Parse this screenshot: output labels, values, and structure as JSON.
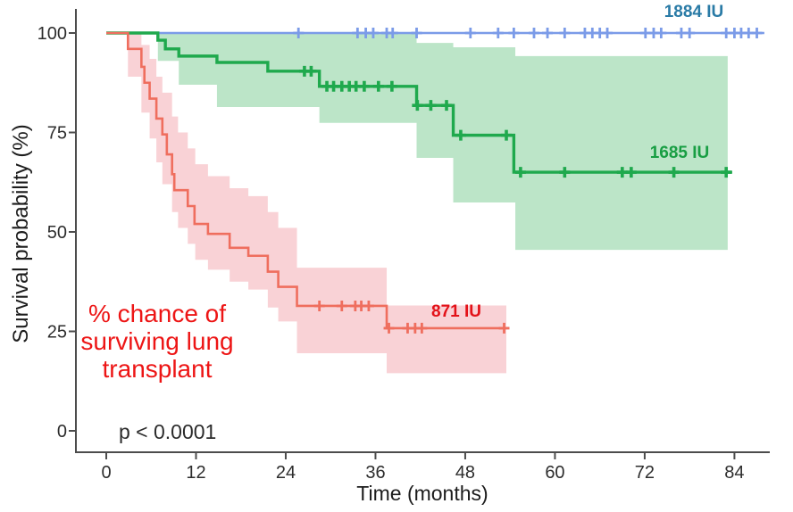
{
  "figure": {
    "y_axis_title": "Survival probability (%)",
    "x_axis_title": "Time (months)",
    "p_value": "p < 0.0001",
    "annotation": {
      "lines": [
        "% chance of",
        "surviving lung",
        "transplant"
      ],
      "color": "#ed1515"
    },
    "group_labels": {
      "blue": "1884 IU",
      "green": "1685 IU",
      "red": "871 IU"
    }
  },
  "chart_data": {
    "type": "line",
    "subtype": "kaplan-meier-step",
    "title": "",
    "xlabel": "Time (months)",
    "ylabel": "Survival probability (%)",
    "xlim": [
      0,
      88
    ],
    "ylim": [
      0,
      100
    ],
    "x_ticks": [
      0,
      12,
      24,
      36,
      48,
      60,
      72,
      84
    ],
    "y_ticks": [
      100,
      75,
      50,
      25,
      0
    ],
    "grid": false,
    "legend_position": "labels-on-plot",
    "p_value_text": "p < 0.0001",
    "axis_color": "#4c4c4c",
    "tick_label_color": "#2d2d2d",
    "series": [
      {
        "name": "1884 IU",
        "line_color": "#7b9be8",
        "label_color": "#2a7ba6",
        "line_width": 2.6,
        "steps": [
          [
            0,
            100
          ]
        ],
        "end_month": 88,
        "band": null,
        "censors": [
          [
            25.7,
            100
          ],
          [
            33.6,
            100
          ],
          [
            34.7,
            100
          ],
          [
            35.7,
            100
          ],
          [
            37.5,
            100
          ],
          [
            38.3,
            100
          ],
          [
            41.5,
            100
          ],
          [
            48.7,
            100
          ],
          [
            52.4,
            100
          ],
          [
            54.5,
            100
          ],
          [
            57.2,
            100
          ],
          [
            59.0,
            100
          ],
          [
            61.3,
            100
          ],
          [
            64.0,
            100
          ],
          [
            65.0,
            100
          ],
          [
            66.0,
            100
          ],
          [
            67.0,
            100
          ],
          [
            72.1,
            100
          ],
          [
            73.2,
            100
          ],
          [
            74.2,
            100
          ],
          [
            76.9,
            100
          ],
          [
            78.0,
            100
          ],
          [
            82.9,
            100
          ],
          [
            84.0,
            100
          ],
          [
            84.9,
            100
          ],
          [
            85.9,
            100
          ],
          [
            87.0,
            100
          ]
        ]
      },
      {
        "name": "1685 IU",
        "line_color": "#1fa94d",
        "label_color": "#189e43",
        "line_width": 3.4,
        "steps": [
          [
            0,
            100
          ],
          [
            6.9,
            98.2
          ],
          [
            7.9,
            96.0
          ],
          [
            9.7,
            94.2
          ],
          [
            14.8,
            92.6
          ],
          [
            21.6,
            90.4
          ],
          [
            28.5,
            86.6
          ],
          [
            41.5,
            81.8
          ],
          [
            46.4,
            74.3
          ],
          [
            54.5,
            65.0
          ]
        ],
        "end_month": 83.7,
        "band": {
          "color": "#bce5c8",
          "breaks": [
            [
              6.9,
              100,
              93
            ],
            [
              9.7,
              100,
              87
            ],
            [
              14.8,
              100,
              81.4
            ],
            [
              28.5,
              100,
              77.4
            ],
            [
              41.5,
              97.5,
              68.6
            ],
            [
              46.4,
              96.4,
              57.4
            ],
            [
              54.7,
              94.2,
              45.5
            ]
          ],
          "end_month": 83.1
        },
        "censors": [
          [
            26.5,
            90.4
          ],
          [
            27.4,
            90.4
          ],
          [
            29.5,
            86.6
          ],
          [
            30.4,
            86.6
          ],
          [
            31.5,
            86.6
          ],
          [
            32.5,
            86.6
          ],
          [
            33.4,
            86.6
          ],
          [
            34.5,
            86.6
          ],
          [
            36.4,
            86.6
          ],
          [
            38.2,
            86.6
          ],
          [
            41.6,
            81.8
          ],
          [
            43.4,
            81.8
          ],
          [
            45.5,
            81.8
          ],
          [
            47.4,
            74.3
          ],
          [
            53.5,
            74.3
          ],
          [
            55.4,
            65.0
          ],
          [
            61.3,
            65.0
          ],
          [
            69.0,
            65.0
          ],
          [
            70.2,
            65.0
          ],
          [
            75.9,
            65.0
          ],
          [
            82.9,
            65.0
          ]
        ]
      },
      {
        "name": "871 IU",
        "line_color": "#ef6e5e",
        "label_color": "#e31219",
        "line_width": 2.6,
        "steps": [
          [
            0,
            100
          ],
          [
            2.9,
            96
          ],
          [
            4.7,
            91.5
          ],
          [
            5.1,
            87.5
          ],
          [
            5.8,
            83.5
          ],
          [
            6.7,
            78.5
          ],
          [
            7.5,
            74.5
          ],
          [
            8.1,
            69.5
          ],
          [
            8.8,
            64.5
          ],
          [
            9.1,
            60.5
          ],
          [
            10.9,
            56.5
          ],
          [
            11.8,
            52
          ],
          [
            13.6,
            49.5
          ],
          [
            16.5,
            46
          ],
          [
            19.0,
            44
          ],
          [
            21.6,
            40
          ],
          [
            23.0,
            36.2
          ],
          [
            25.5,
            31.4
          ],
          [
            37.5,
            25.8
          ]
        ],
        "end_month": 53.5,
        "band": {
          "color": "#f9d2d6",
          "breaks": [
            [
              2.9,
              100,
              89
            ],
            [
              4.7,
              97,
              80
            ],
            [
              5.8,
              93.5,
              73.5
            ],
            [
              6.7,
              89,
              67.5
            ],
            [
              7.5,
              85,
              62
            ],
            [
              8.8,
              79,
              55
            ],
            [
              9.6,
              75,
              51
            ],
            [
              10.9,
              71,
              47
            ],
            [
              11.9,
              67,
              43
            ],
            [
              13.6,
              64,
              40.5
            ],
            [
              16.5,
              61,
              37.5
            ],
            [
              19.0,
              59,
              35.5
            ],
            [
              21.6,
              55,
              31
            ],
            [
              23.0,
              51,
              27.5
            ],
            [
              25.5,
              41,
              19.5
            ],
            [
              37.5,
              31.5,
              14.5
            ]
          ],
          "end_month": 53.5
        },
        "censors": [
          [
            28.5,
            31.4
          ],
          [
            31.5,
            31.4
          ],
          [
            33.3,
            31.4
          ],
          [
            34.1,
            31.4
          ],
          [
            35.1,
            31.4
          ],
          [
            37.8,
            25.8
          ],
          [
            40.3,
            25.8
          ],
          [
            41.3,
            25.8
          ],
          [
            42.2,
            25.8
          ],
          [
            53.2,
            25.8
          ]
        ]
      }
    ]
  }
}
